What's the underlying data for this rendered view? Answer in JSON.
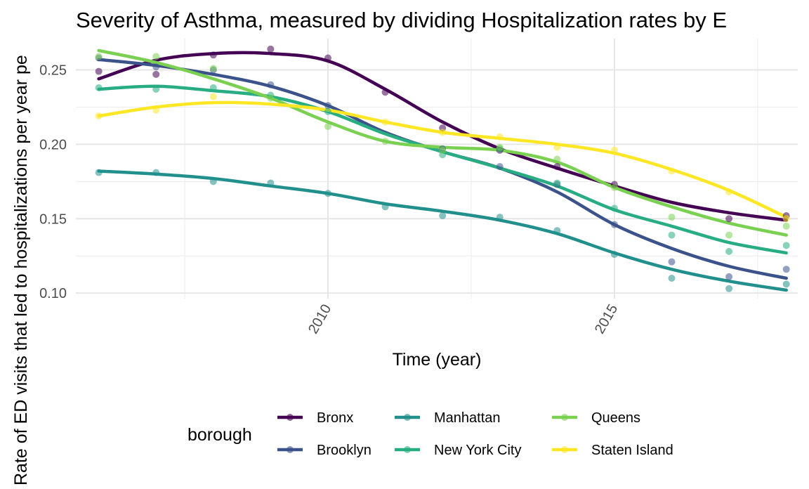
{
  "chart_data": {
    "type": "line",
    "title": "Severity of Asthma, measured by dividing Hospitalization rates by E",
    "xlabel": "Time (year)",
    "ylabel": "Rate of ED visits that led to hospitalizations per year pe",
    "xlim": [
      2005.6,
      2018.2
    ],
    "ylim": [
      0.0963,
      0.271
    ],
    "x_ticks": [
      2010,
      2015
    ],
    "x_tick_labels": [
      "2010",
      "2015"
    ],
    "y_ticks": [
      0.1,
      0.15,
      0.2,
      0.25
    ],
    "y_tick_labels": [
      "0.10",
      "0.15",
      "0.20",
      "0.25"
    ],
    "grid": true,
    "legend": {
      "title": "borough",
      "position": "bottom"
    },
    "x": [
      2006,
      2007,
      2008,
      2009,
      2010,
      2011,
      2012,
      2013,
      2014,
      2015,
      2016,
      2017,
      2018
    ],
    "series": [
      {
        "name": "Bronx",
        "color": "#440154",
        "points": [
          0.249,
          0.247,
          0.26,
          0.264,
          0.258,
          0.235,
          0.211,
          0.196,
          0.185,
          0.173,
          null,
          0.15,
          0.152
        ],
        "smooth": [
          0.244,
          0.2565,
          0.261,
          0.261,
          0.256,
          0.237,
          0.215,
          0.197,
          0.184,
          0.172,
          0.161,
          0.154,
          0.149
        ]
      },
      {
        "name": "Brooklyn",
        "color": "#3B528B",
        "points": [
          0.258,
          0.252,
          0.25,
          0.24,
          0.226,
          null,
          0.197,
          0.185,
          0.173,
          0.146,
          0.121,
          0.111,
          0.116
        ],
        "smooth": [
          0.257,
          0.253,
          0.247,
          0.239,
          0.226,
          0.208,
          0.195,
          0.184,
          0.168,
          0.146,
          0.13,
          0.118,
          0.11
        ]
      },
      {
        "name": "Manhattan",
        "color": "#21908C",
        "points": [
          0.181,
          0.181,
          0.175,
          0.174,
          0.167,
          0.158,
          0.152,
          0.151,
          0.142,
          0.126,
          0.11,
          0.103,
          0.106
        ],
        "smooth": [
          0.182,
          0.18,
          0.177,
          0.172,
          0.167,
          0.16,
          0.155,
          0.149,
          0.14,
          0.127,
          0.116,
          0.108,
          0.102
        ]
      },
      {
        "name": "New York City",
        "color": "#27AD81",
        "points": [
          0.238,
          0.237,
          0.238,
          0.233,
          0.222,
          null,
          0.193,
          0.197,
          0.174,
          0.157,
          0.139,
          0.128,
          0.132
        ],
        "smooth": [
          0.237,
          0.239,
          0.236,
          0.232,
          0.222,
          0.207,
          0.195,
          0.184,
          0.172,
          0.156,
          0.145,
          0.134,
          0.127
        ]
      },
      {
        "name": "Queens",
        "color": "#7AD151",
        "points": [
          0.259,
          0.259,
          0.251,
          0.231,
          0.212,
          0.202,
          0.196,
          0.198,
          0.19,
          0.171,
          0.151,
          0.139,
          0.145
        ],
        "smooth": [
          0.263,
          0.255,
          0.244,
          0.231,
          0.215,
          0.202,
          0.198,
          0.196,
          0.188,
          0.171,
          0.158,
          0.147,
          0.139
        ]
      },
      {
        "name": "Staten Island",
        "color": "#FDE725",
        "points": [
          0.219,
          0.223,
          0.232,
          null,
          null,
          0.215,
          0.208,
          0.205,
          0.198,
          0.196,
          0.182,
          0.168,
          0.15
        ],
        "smooth": [
          0.219,
          0.225,
          0.228,
          0.227,
          0.223,
          0.215,
          0.208,
          0.204,
          0.2,
          0.194,
          0.183,
          0.169,
          0.151
        ]
      }
    ]
  }
}
